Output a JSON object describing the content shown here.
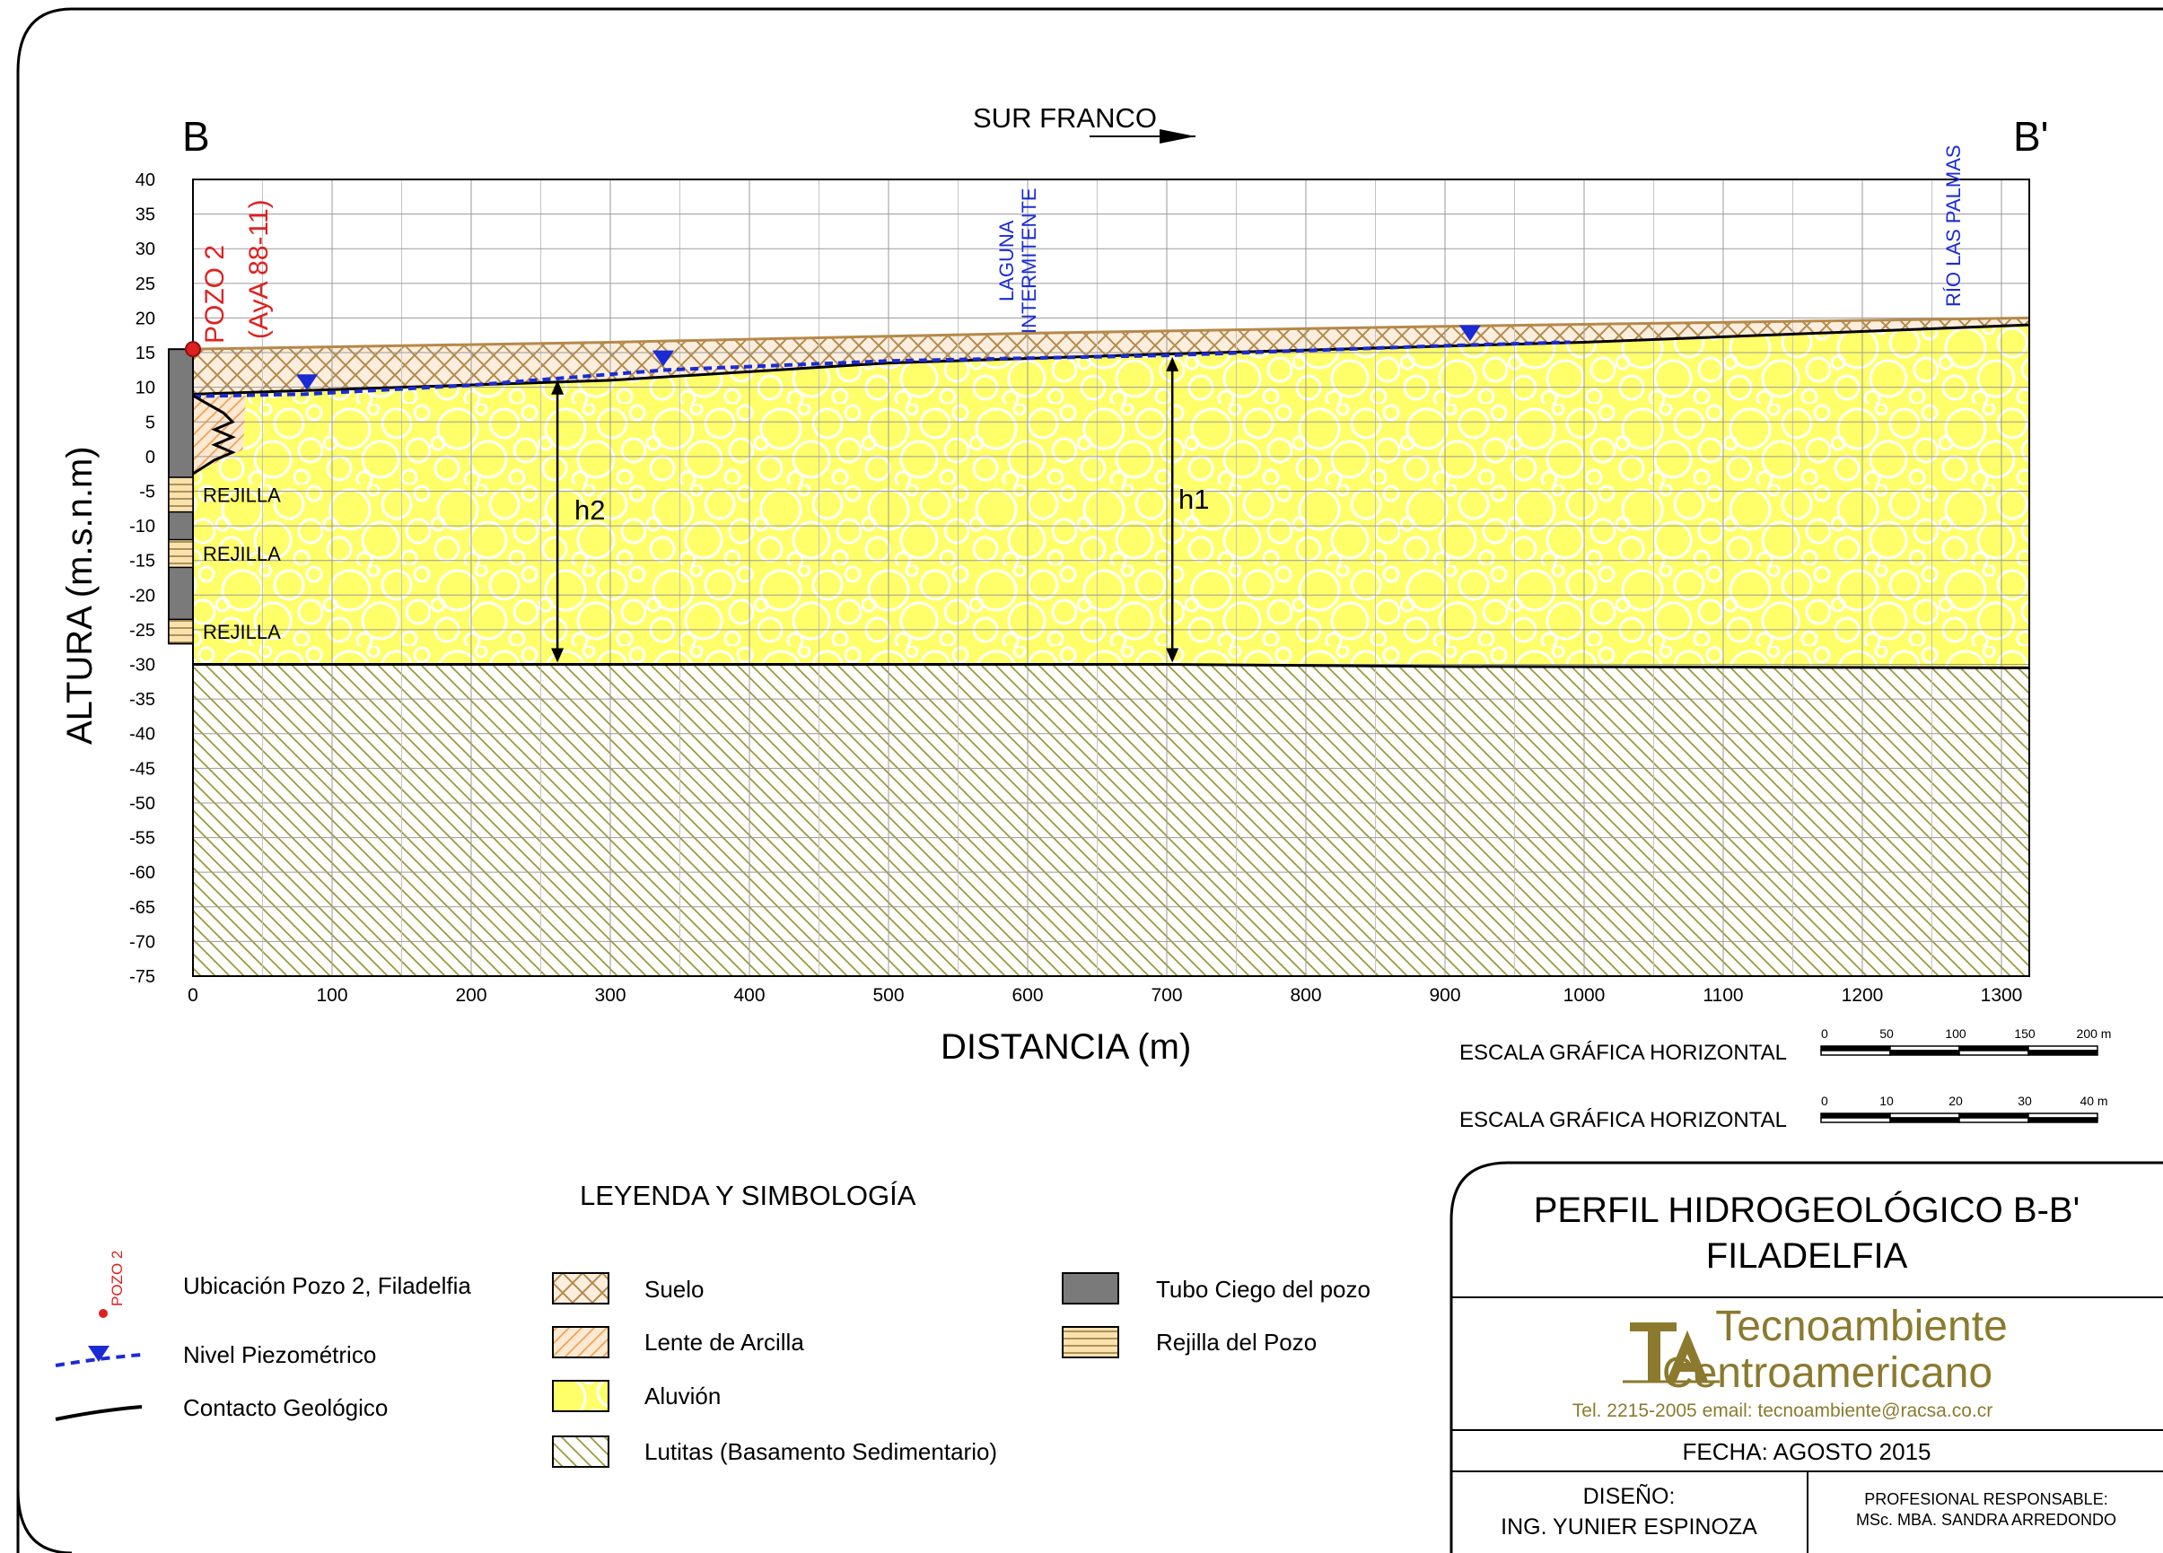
{
  "section": {
    "start_label": "B",
    "end_label": "B'",
    "orientation_label": "SUR FRANCO"
  },
  "axes": {
    "y_label": "ALTURA (m.s.n.m)",
    "x_label": "DISTANCIA (m)",
    "y_ticks": [
      40,
      35,
      30,
      25,
      20,
      15,
      10,
      5,
      0,
      -5,
      -10,
      -15,
      -20,
      -25,
      -30,
      -35,
      -40,
      -45,
      -50,
      -55,
      -60,
      -65,
      -70,
      -75
    ],
    "x_ticks": [
      0,
      100,
      200,
      300,
      400,
      500,
      600,
      700,
      800,
      900,
      1000,
      1100,
      1200,
      1300
    ],
    "x_range": [
      0,
      1320
    ],
    "y_range": [
      -75,
      40
    ]
  },
  "profile_data": {
    "ground_surface": [
      [
        0,
        15.5
      ],
      [
        300,
        16.5
      ],
      [
        600,
        17.8
      ],
      [
        900,
        18.8
      ],
      [
        1320,
        20
      ]
    ],
    "alluvium_top_contact": [
      [
        0,
        9
      ],
      [
        300,
        11
      ],
      [
        500,
        13.5
      ],
      [
        700,
        14.8
      ],
      [
        1000,
        16.5
      ],
      [
        1320,
        19
      ]
    ],
    "water_table": [
      [
        0,
        8.7
      ],
      [
        80,
        9
      ],
      [
        200,
        10.3
      ],
      [
        340,
        12.5
      ],
      [
        500,
        13.8
      ],
      [
        700,
        14.6
      ],
      [
        900,
        16
      ],
      [
        990,
        16.5
      ]
    ],
    "water_table_markers_x": [
      82,
      338,
      918
    ],
    "basement_top": [
      [
        0,
        -30
      ],
      [
        700,
        -30
      ],
      [
        900,
        -30.3
      ],
      [
        1320,
        -30.5
      ]
    ],
    "well_casing_bottom_elevation": -27,
    "screen_intervals": [
      [
        -3,
        -8
      ],
      [
        -12,
        -16
      ],
      [
        -23.5,
        -27
      ]
    ],
    "h2_x": 262,
    "h1_x": 704
  },
  "annotations": {
    "well_name": "POZO 2",
    "well_code": "(AyA 88-11)",
    "laguna": [
      "LAGUNA",
      "INTERMITENTE"
    ],
    "rio": "RÍO LAS PALMAS",
    "rejilla": "REJILLA",
    "h1": "h1",
    "h2": "h2"
  },
  "scales": [
    {
      "label": "ESCALA GRÁFICA HORIZONTAL",
      "ticks": [
        "0",
        "50",
        "100",
        "150",
        "200 m"
      ]
    },
    {
      "label": "ESCALA GRÁFICA HORIZONTAL",
      "ticks": [
        "0",
        "10",
        "20",
        "30",
        "40 m"
      ]
    }
  ],
  "legend": {
    "title": "LEYENDA Y SIMBOLOGÍA",
    "well_symbol_label": "POZO 2",
    "col1": [
      "Ubicación Pozo 2, Filadelfia",
      "Nivel Piezométrico",
      "Contacto Geológico"
    ],
    "col2": [
      "Suelo",
      "Lente de Arcilla",
      "Aluvión",
      "Lutitas (Basamento Sedimentario)"
    ],
    "col3": [
      "Tubo Ciego del pozo",
      "Rejilla del Pozo"
    ]
  },
  "title_block": {
    "title_line1": "PERFIL HIDROGEOLÓGICO B-B'",
    "title_line2": "FILADELFIA",
    "company_line1": "Tecnoambiente",
    "company_line2": "Centroamericano",
    "contact": "Tel. 2215-2005  email: tecnoambiente@racsa.co.cr",
    "date": "FECHA: AGOSTO 2015",
    "design_label": "DISEÑO:",
    "design_name": "ING. YUNIER ESPINOZA",
    "responsible_label": "PROFESIONAL RESPONSABLE:",
    "responsible_name": "MSc. MBA. SANDRA ARREDONDO"
  },
  "colors": {
    "soil": "#b5894a",
    "alluvium": "#ffff5a",
    "alluvium_line": "#f2ef00",
    "shale": "#9c9a3c",
    "clay": "#f0a35a",
    "water": "#1a2bd6",
    "well_red": "#e02020",
    "casing": "#7a7a7a",
    "logo": "#8b7a2e"
  }
}
